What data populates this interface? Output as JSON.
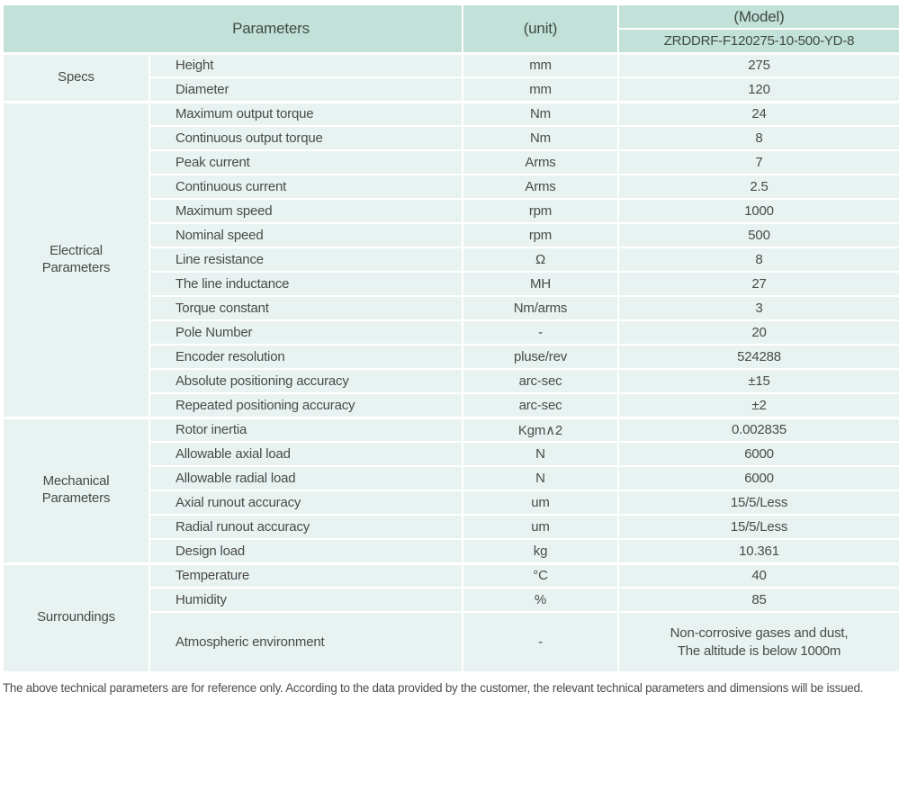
{
  "colors": {
    "header_bg": "#c2e1d8",
    "row_bg": "#e8f3f1",
    "border": "#ffffff",
    "text": "#4a4a4a"
  },
  "header": {
    "parameters_label": "Parameters",
    "unit_label": "(unit)",
    "model_label": "(Model)",
    "model_value": "ZRDDRF-F120275-10-500-YD-8"
  },
  "sections": [
    {
      "category": "Specs",
      "rows": [
        {
          "parameter": "Height",
          "unit": "mm",
          "value": "275"
        },
        {
          "parameter": "Diameter",
          "unit": "mm",
          "value": "120"
        }
      ]
    },
    {
      "category": "Electrical\nParameters",
      "rows": [
        {
          "parameter": "Maximum output torque",
          "unit": "Nm",
          "value": "24"
        },
        {
          "parameter": "Continuous output torque",
          "unit": "Nm",
          "value": "8"
        },
        {
          "parameter": "Peak current",
          "unit": "Arms",
          "value": "7"
        },
        {
          "parameter": "Continuous current",
          "unit": "Arms",
          "value": "2.5"
        },
        {
          "parameter": "Maximum speed",
          "unit": "rpm",
          "value": "1000"
        },
        {
          "parameter": "Nominal speed",
          "unit": "rpm",
          "value": "500"
        },
        {
          "parameter": "Line resistance",
          "unit": "Ω",
          "value": "8"
        },
        {
          "parameter": "The line inductance",
          "unit": "MH",
          "value": "27"
        },
        {
          "parameter": "Torque constant",
          "unit": "Nm/arms",
          "value": "3"
        },
        {
          "parameter": "Pole Number",
          "unit": "-",
          "value": "20"
        },
        {
          "parameter": "Encoder resolution",
          "unit": "pluse/rev",
          "value": "524288"
        },
        {
          "parameter": "Absolute positioning accuracy",
          "unit": "arc-sec",
          "value": "±15"
        },
        {
          "parameter": "Repeated positioning accuracy",
          "unit": "arc-sec",
          "value": "±2"
        }
      ]
    },
    {
      "category": "Mechanical\nParameters",
      "rows": [
        {
          "parameter": "Rotor inertia",
          "unit": "Kgm∧2",
          "value": "0.002835"
        },
        {
          "parameter": "Allowable axial load",
          "unit": "N",
          "value": "6000"
        },
        {
          "parameter": "Allowable radial load",
          "unit": "N",
          "value": "6000"
        },
        {
          "parameter": "Axial runout accuracy",
          "unit": "um",
          "value": "15/5/Less"
        },
        {
          "parameter": "Radial runout accuracy",
          "unit": "um",
          "value": "15/5/Less"
        },
        {
          "parameter": "Design load",
          "unit": "kg",
          "value": "10.361"
        }
      ]
    },
    {
      "category": "Surroundings",
      "rows": [
        {
          "parameter": "Temperature",
          "unit": "°C",
          "value": "40"
        },
        {
          "parameter": "Humidity",
          "unit": "%",
          "value": "85"
        },
        {
          "parameter": "Atmospheric environment",
          "unit": "-",
          "value": "Non-corrosive gases and dust,\nThe altitude is below 1000m",
          "tall": true
        }
      ]
    }
  ],
  "footnote": "The above technical parameters are for reference only. According to the data provided by the customer, the relevant technical parameters and dimensions will be issued."
}
